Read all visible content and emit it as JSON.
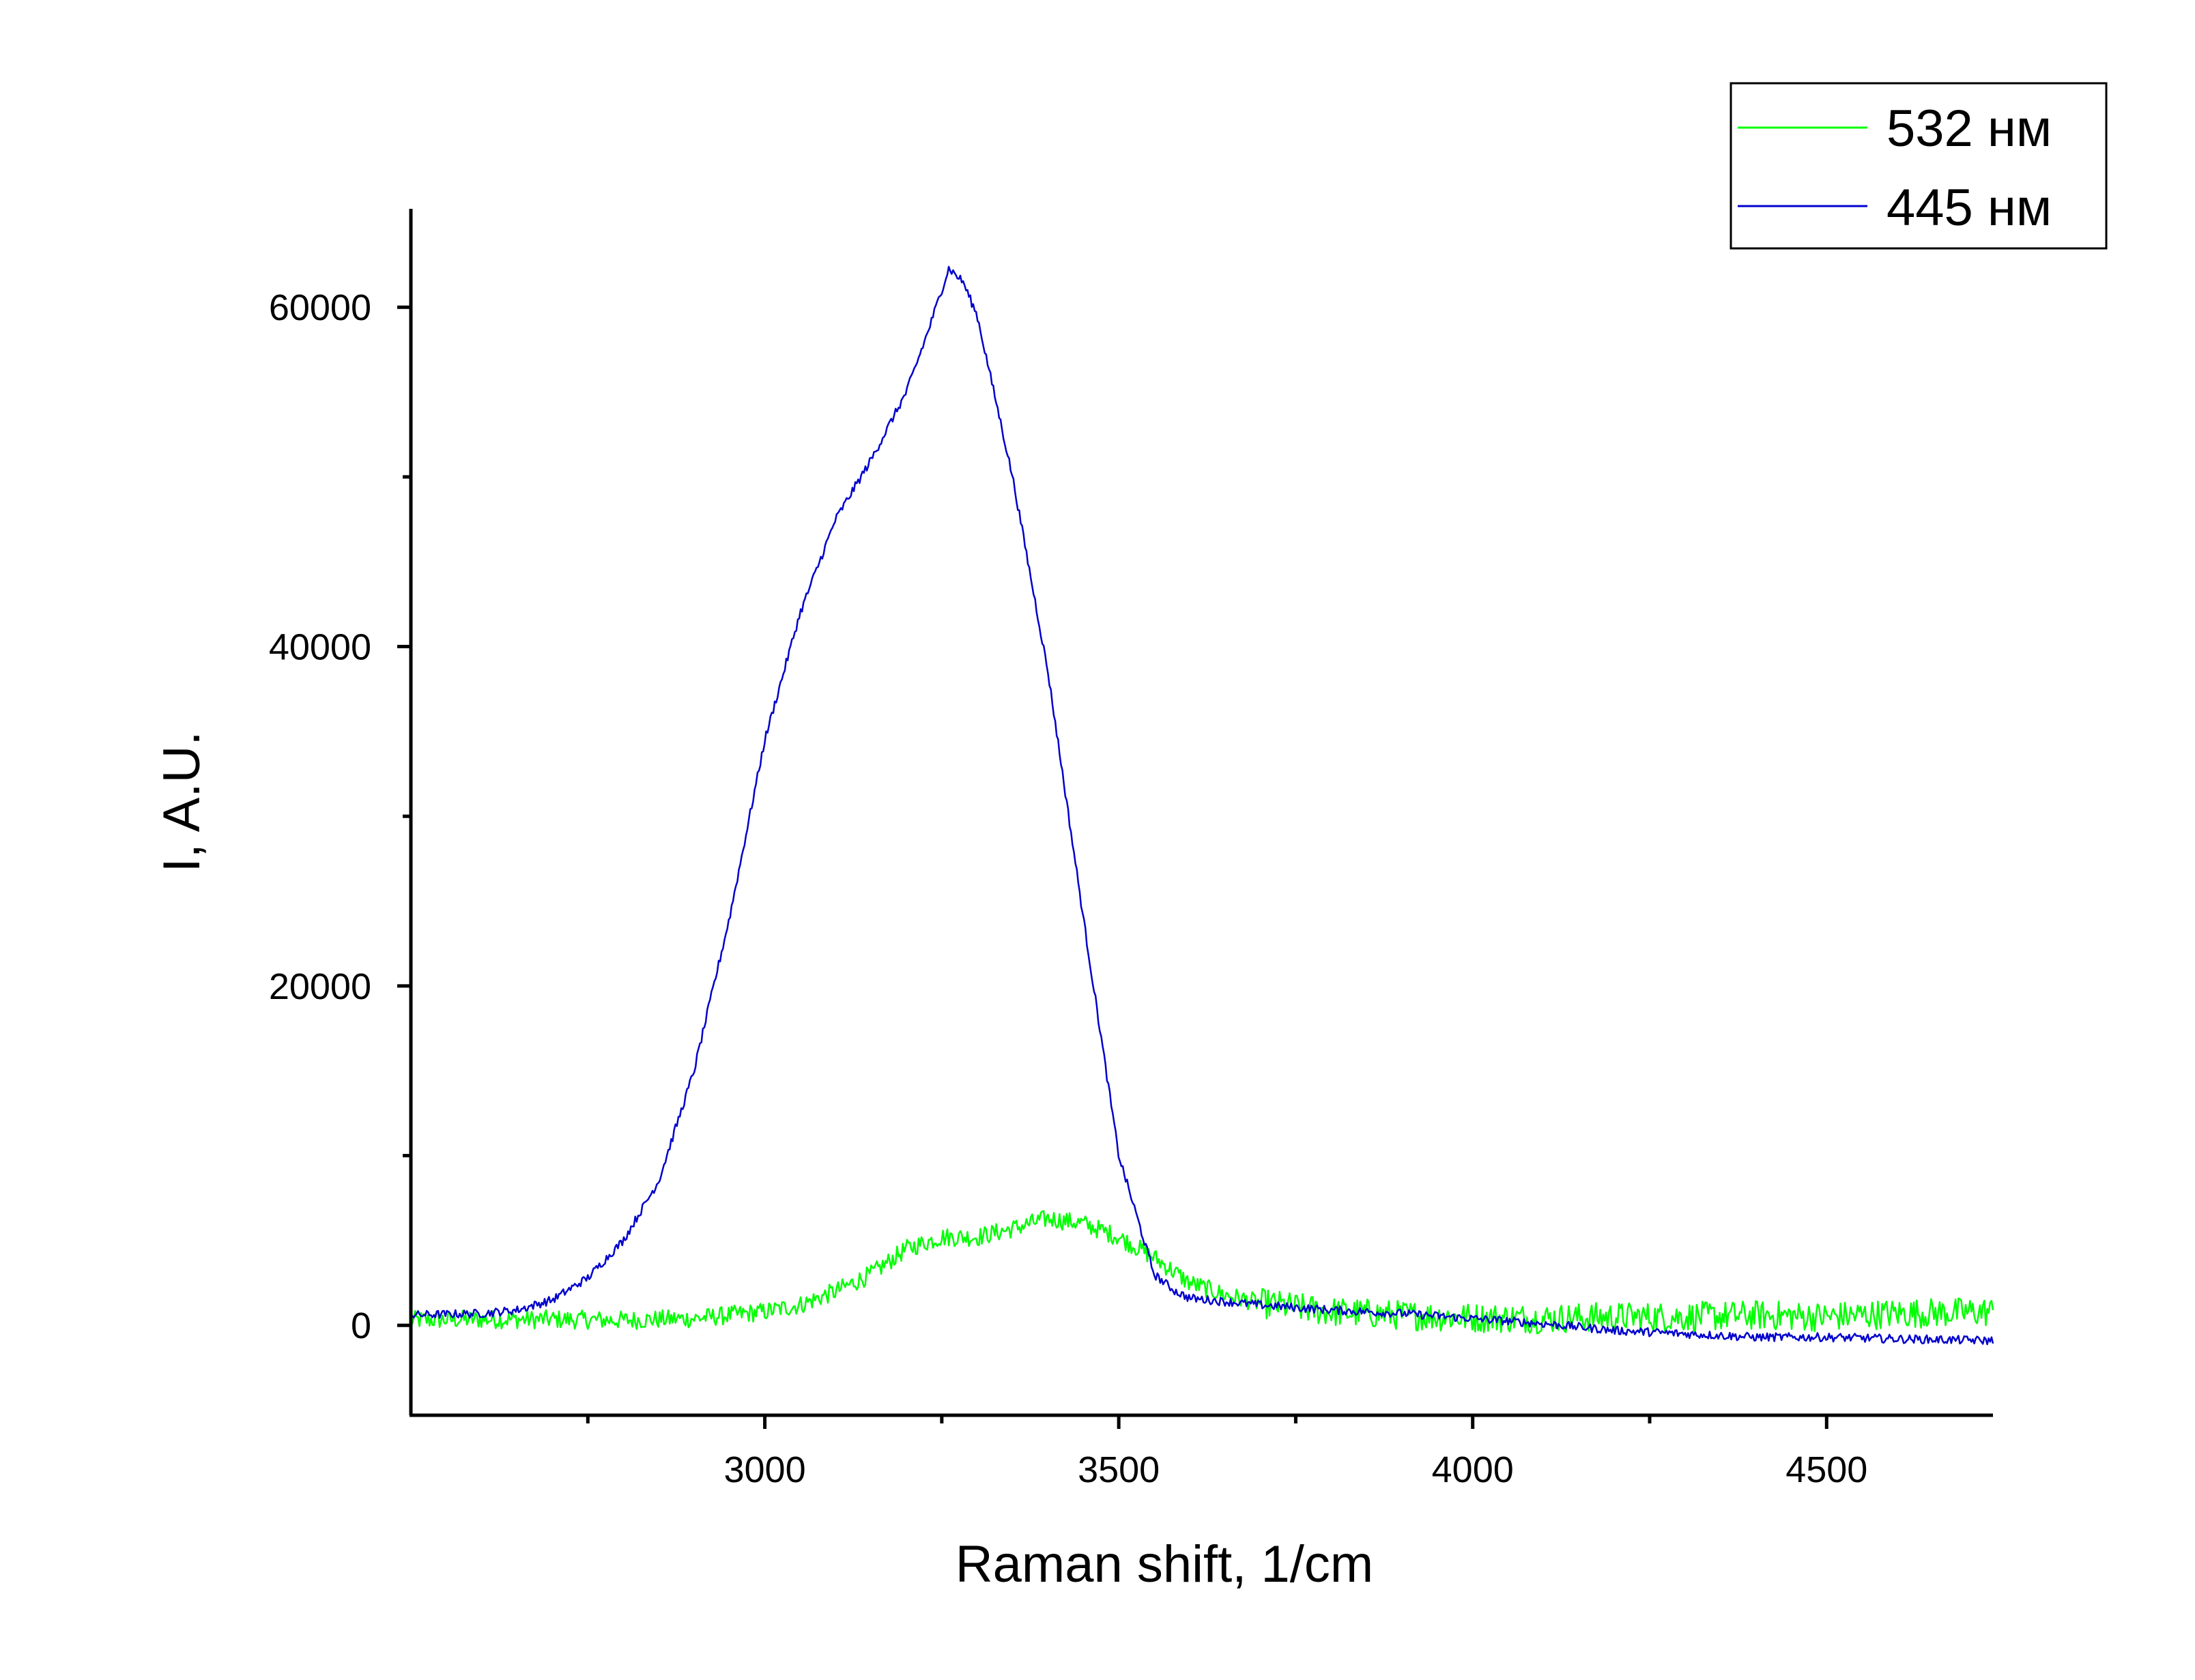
{
  "chart_data": {
    "type": "line",
    "xlabel": "Raman shift, 1/cm",
    "ylabel": "I, A.U.",
    "xlim": [
      2500,
      4735
    ],
    "ylim": [
      -5300,
      65800
    ],
    "x_ticks": [
      3000,
      3500,
      4000,
      4500
    ],
    "x_minor_ticks": [
      2750,
      3250,
      3750,
      4250
    ],
    "y_ticks": [
      0,
      20000,
      40000,
      60000
    ],
    "y_minor_ticks": [
      10000,
      30000,
      50000
    ],
    "grid": false,
    "legend_position": "top-right",
    "series": [
      {
        "name": "532 нм",
        "color": "#00ff00",
        "noise": 550,
        "x": [
          2500,
          2600,
          2700,
          2800,
          2900,
          3000,
          3050,
          3100,
          3150,
          3200,
          3250,
          3300,
          3350,
          3400,
          3450,
          3500,
          3550,
          3600,
          3650,
          3700,
          3800,
          3900,
          4000,
          4100,
          4200,
          4300,
          4400,
          4500,
          4600,
          4735
        ],
        "y": [
          300,
          350,
          350,
          300,
          400,
          800,
          1200,
          2000,
          3000,
          4500,
          5200,
          5200,
          5700,
          6300,
          6000,
          5200,
          4000,
          2500,
          1800,
          1300,
          800,
          600,
          450,
          400,
          500,
          500,
          600,
          500,
          700,
          800
        ]
      },
      {
        "name": "445 нм",
        "color": "#0000cc",
        "noise": 250,
        "x": [
          2500,
          2600,
          2650,
          2700,
          2750,
          2800,
          2850,
          2900,
          2950,
          3000,
          3050,
          3100,
          3150,
          3200,
          3230,
          3260,
          3280,
          3300,
          3350,
          3400,
          3450,
          3500,
          3550,
          3580,
          3600,
          3650,
          3700,
          3800,
          3900,
          4000,
          4100,
          4200,
          4300,
          4400,
          4500,
          4600,
          4735
        ],
        "y": [
          600,
          700,
          900,
          1500,
          2800,
          5000,
          8500,
          15000,
          24000,
          34500,
          42000,
          47500,
          51000,
          55000,
          58500,
          62300,
          61500,
          59500,
          50000,
          38500,
          24000,
          10000,
          3000,
          2000,
          1600,
          1400,
          1200,
          900,
          700,
          400,
          100,
          -300,
          -500,
          -700,
          -700,
          -800,
          -900
        ]
      }
    ]
  }
}
